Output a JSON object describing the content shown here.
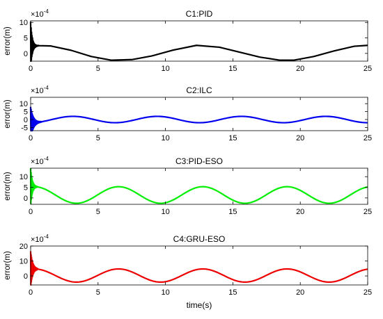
{
  "figure": {
    "xlabel": "time(s)"
  },
  "chart_data": [
    {
      "type": "line",
      "title": "C1:PID",
      "ylabel": "error(m)",
      "exponent_label": "×10",
      "exponent_power": "-4",
      "xlim": [
        0,
        25
      ],
      "ylim": [
        -2.5,
        10.5
      ],
      "xticks": [
        0,
        5,
        10,
        15,
        20,
        25
      ],
      "yticks": [
        0,
        5,
        10
      ],
      "grid": false,
      "series": [
        {
          "color": "#000000",
          "transient": {
            "end": 0.6,
            "amplitude": 8,
            "decay": 0.12,
            "frequency": 30
          },
          "start": 2.2,
          "x": [
            0,
            0.6,
            1.5,
            3,
            4.5,
            6.0,
            7.5,
            9,
            10.5,
            12.3,
            14,
            15.5,
            17,
            18.5,
            19.5,
            21,
            22.5,
            24,
            25
          ],
          "y": [
            9,
            2.5,
            2.4,
            1.0,
            -1.0,
            -2.2,
            -2.0,
            -0.8,
            1.0,
            2.6,
            2.0,
            0.4,
            -1.2,
            -2.2,
            -2.2,
            -1.0,
            0.8,
            2.3,
            2.6
          ]
        }
      ]
    },
    {
      "type": "line",
      "title": "C2:ILC",
      "ylabel": "error(m)",
      "exponent_label": "×10",
      "exponent_power": "-4",
      "xlim": [
        0,
        25
      ],
      "ylim": [
        -7,
        14
      ],
      "xticks": [
        0,
        5,
        10,
        15,
        20,
        25
      ],
      "yticks": [
        -5,
        0,
        5,
        10
      ],
      "grid": false,
      "series": [
        {
          "color": "#0000ee",
          "transient": {
            "end": 0.8,
            "amplitude": 10,
            "decay": 0.2,
            "frequency": 28
          },
          "mean": 0,
          "amplitude": 2.0,
          "period": 6.25,
          "phase": 4.7,
          "xrange": [
            0.8,
            25
          ]
        }
      ]
    },
    {
      "type": "line",
      "title": "C3:PID-ESO",
      "ylabel": "error(m)",
      "exponent_label": "×10",
      "exponent_power": "-4",
      "xlim": [
        0,
        25
      ],
      "ylim": [
        -3,
        14
      ],
      "xticks": [
        0,
        5,
        10,
        15,
        20,
        25
      ],
      "yticks": [
        0,
        5,
        10
      ],
      "grid": false,
      "series": [
        {
          "color": "#00ee00",
          "transient": {
            "end": 0.5,
            "amplitude": 9,
            "decay": 0.12,
            "frequency": 30
          },
          "mean": 1.4,
          "amplitude": 3.9,
          "period": 6.25,
          "phase": 1.3,
          "xrange": [
            0.5,
            25
          ]
        }
      ]
    },
    {
      "type": "line",
      "title": "C4:GRU-ESO",
      "ylabel": "error(m)",
      "exponent_label": "×10",
      "exponent_power": "-4",
      "xlim": [
        0,
        25
      ],
      "ylim": [
        -6,
        20
      ],
      "xticks": [
        0,
        5,
        10,
        15,
        20,
        25
      ],
      "yticks": [
        0,
        10,
        20
      ],
      "grid": false,
      "series": [
        {
          "color": "#ee0000",
          "transient": {
            "end": 0.5,
            "amplitude": 12,
            "decay": 0.15,
            "frequency": 30
          },
          "mean": 0.3,
          "amplitude": 4.4,
          "period": 6.25,
          "phase": 1.3,
          "xrange": [
            0.5,
            25
          ]
        }
      ]
    }
  ]
}
